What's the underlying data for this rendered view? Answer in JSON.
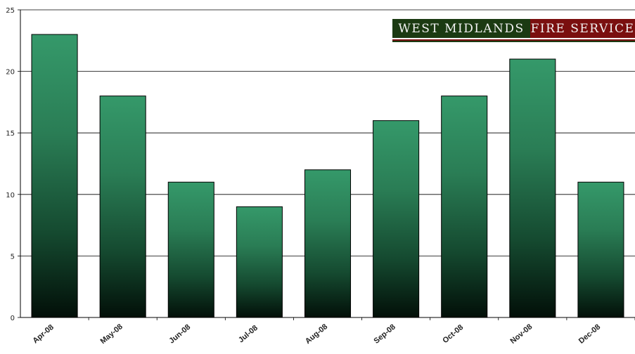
{
  "logo": {
    "left_text": "WEST MIDLANDS",
    "right_text": "FIRE SERVICE",
    "left_color": "#1b3a12",
    "right_color": "#7a0f0f"
  },
  "chart_data": {
    "type": "bar",
    "categories": [
      "Apr-08",
      "May-08",
      "Jun-08",
      "Jul-08",
      "Aug-08",
      "Sep-08",
      "Oct-08",
      "Nov-08",
      "Dec-08"
    ],
    "values": [
      23,
      18,
      11,
      9,
      12,
      16,
      18,
      21,
      11
    ],
    "title": "",
    "xlabel": "",
    "ylabel": "",
    "ylim": [
      0,
      25
    ],
    "yticks": [
      0,
      5,
      10,
      15,
      20,
      25
    ],
    "grid": true,
    "bar_color_top": "#35996a",
    "bar_color_bottom": "#020f08"
  }
}
